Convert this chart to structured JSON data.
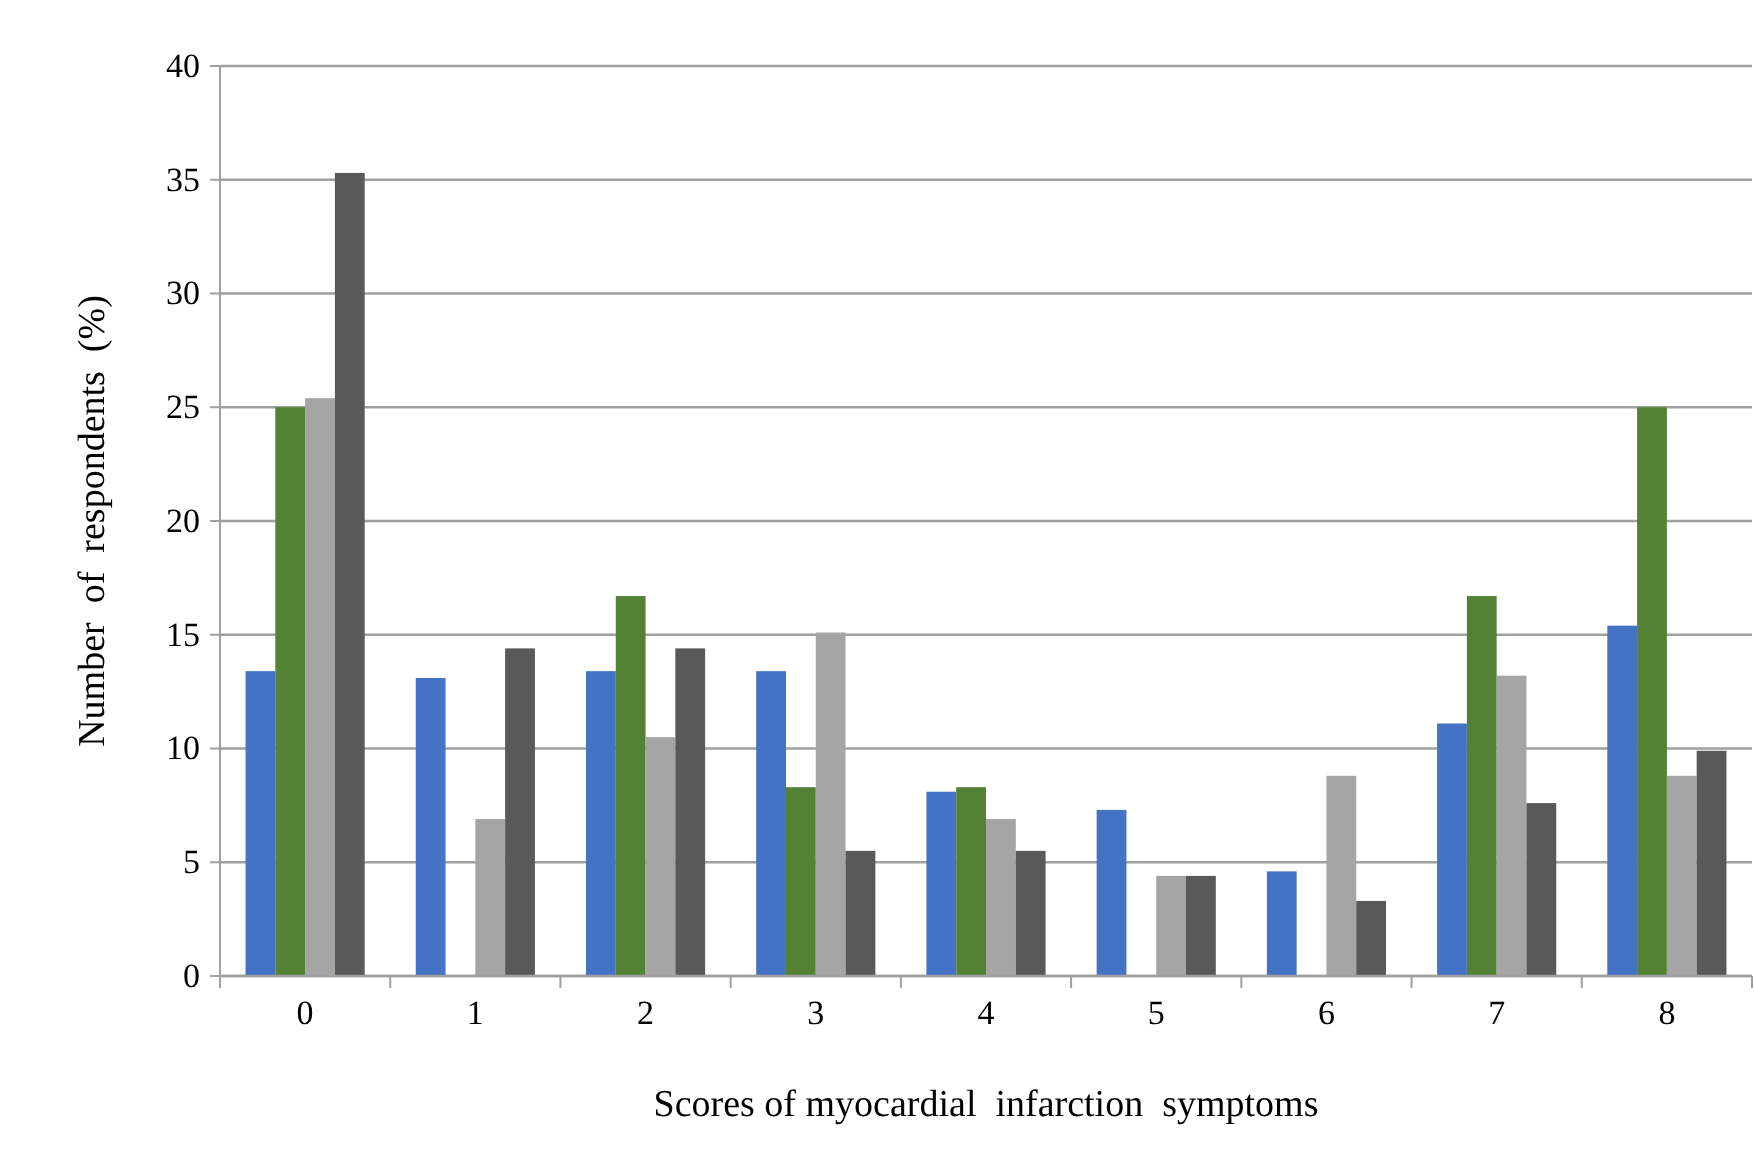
{
  "chart_data": {
    "type": "bar",
    "xlabel": "Scores of myocardial  infarction  symptoms",
    "ylabel": "Number  of  respondents  (%)",
    "categories": [
      "0",
      "1",
      "2",
      "3",
      "4",
      "5",
      "6",
      "7",
      "8"
    ],
    "series": [
      {
        "color": "#4472c4",
        "values": [
          13.4,
          13.1,
          13.4,
          13.4,
          8.1,
          7.3,
          4.6,
          11.1,
          15.4
        ]
      },
      {
        "color": "#548235",
        "values": [
          25.0,
          0,
          16.7,
          8.3,
          8.3,
          0,
          0,
          16.7,
          25.0
        ]
      },
      {
        "color": "#a5a5a5",
        "values": [
          25.4,
          6.9,
          10.5,
          15.1,
          6.9,
          4.4,
          8.8,
          13.2,
          8.8
        ]
      },
      {
        "color": "#595959",
        "values": [
          35.3,
          14.4,
          14.4,
          5.5,
          5.5,
          4.4,
          3.3,
          7.6,
          9.9
        ]
      }
    ],
    "ylim": [
      0,
      40
    ],
    "yticks": [
      0,
      5,
      10,
      15,
      20,
      25,
      30,
      35,
      40
    ],
    "grid": "y"
  }
}
